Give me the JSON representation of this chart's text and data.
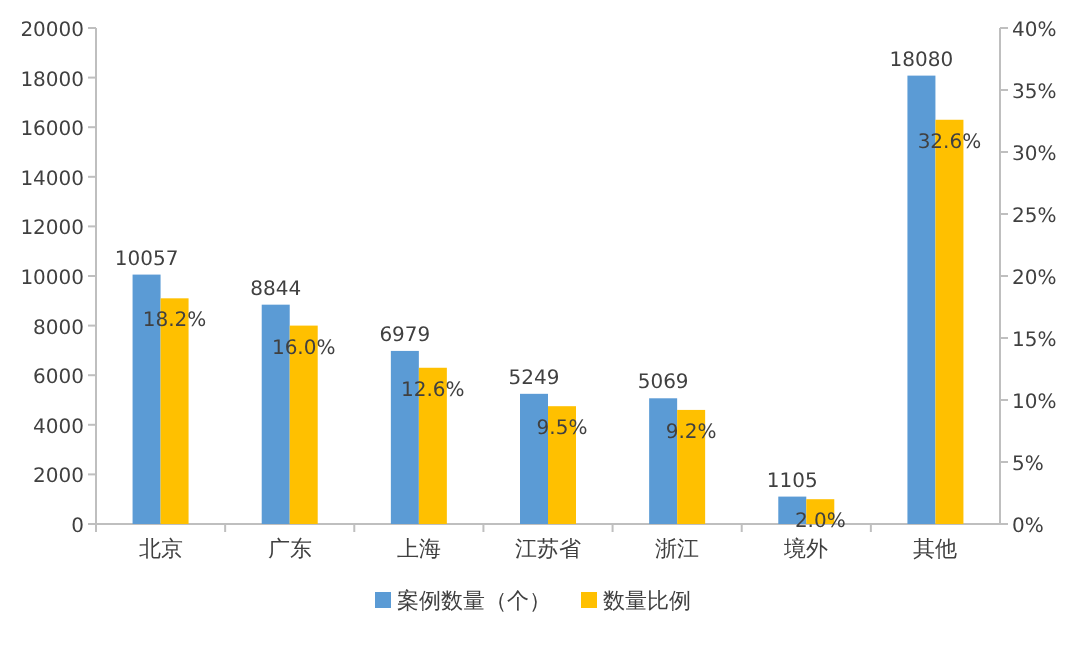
{
  "chart_data": {
    "type": "bar",
    "categories": [
      "北京",
      "广东",
      "上海",
      "江苏省",
      "浙江",
      "境外",
      "其他"
    ],
    "series": [
      {
        "name": "案例数量（个）",
        "color": "#5b9bd5",
        "values": [
          10057,
          8844,
          6979,
          5249,
          5069,
          1105,
          18080
        ],
        "value_labels": [
          "10057",
          "8844",
          "6979",
          "5249",
          "5069",
          "1105",
          "18080"
        ]
      },
      {
        "name": "数量比例",
        "color": "#ffc000",
        "axis": "y2",
        "values": [
          18.2,
          16.0,
          12.6,
          9.5,
          9.2,
          2.0,
          32.6
        ],
        "value_labels": [
          "18.2%",
          "16.0%",
          "12.6%",
          "9.5%",
          "9.2%",
          "2.0%",
          "32.6%"
        ]
      }
    ],
    "ylim": [
      0,
      20000
    ],
    "yticks": [
      0,
      2000,
      4000,
      6000,
      8000,
      10000,
      12000,
      14000,
      16000,
      18000,
      20000
    ],
    "y2lim": [
      0,
      40
    ],
    "y2ticks": [
      {
        "value": 0,
        "label": "0%"
      },
      {
        "value": 5,
        "label": "5%"
      },
      {
        "value": 10,
        "label": "10%"
      },
      {
        "value": 15,
        "label": "15%"
      },
      {
        "value": 20,
        "label": "20%"
      },
      {
        "value": 25,
        "label": "25%"
      },
      {
        "value": 30,
        "label": "30%"
      },
      {
        "value": 35,
        "label": "35%"
      },
      {
        "value": 40,
        "label": "40%"
      }
    ],
    "grid": false,
    "legend": "bottom"
  }
}
